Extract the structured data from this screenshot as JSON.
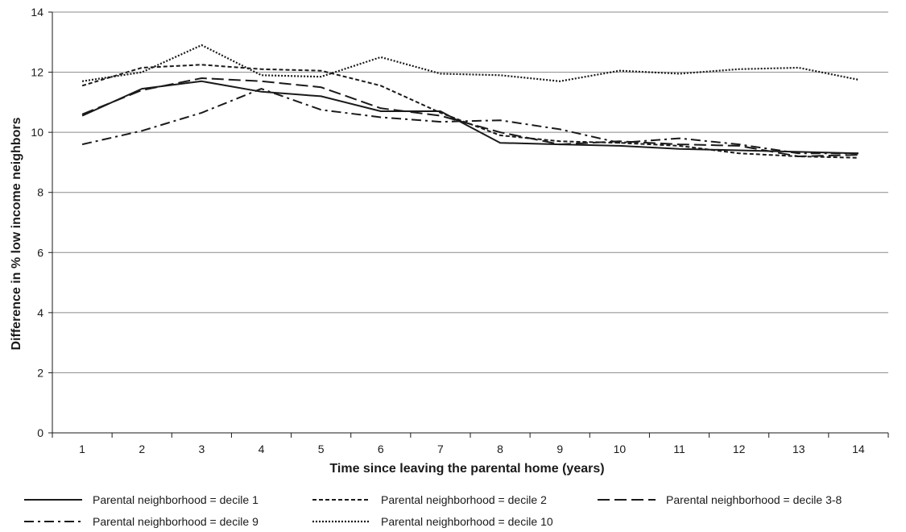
{
  "chart_data": {
    "type": "line",
    "title": "",
    "xlabel": "Time since leaving the parental home (years)",
    "ylabel": "Difference in % low income neighbors",
    "x": [
      1,
      2,
      3,
      4,
      5,
      6,
      7,
      8,
      9,
      10,
      11,
      12,
      13,
      14
    ],
    "xlim": [
      0.5,
      14.5
    ],
    "ylim": [
      0,
      14
    ],
    "yticks": [
      0,
      2,
      4,
      6,
      8,
      10,
      12,
      14
    ],
    "grid": "horizontal",
    "legend_position": "bottom",
    "series": [
      {
        "name": "Parental neighborhood = decile 1",
        "style": "solid",
        "values": [
          10.55,
          11.45,
          11.7,
          11.35,
          11.2,
          10.7,
          10.7,
          9.65,
          9.6,
          9.55,
          9.45,
          9.4,
          9.35,
          9.3
        ]
      },
      {
        "name": "Parental neighborhood = decile 2",
        "style": "short-dash",
        "values": [
          11.55,
          12.15,
          12.25,
          12.1,
          12.05,
          11.55,
          10.65,
          9.9,
          9.7,
          9.65,
          9.55,
          9.3,
          9.2,
          9.15
        ]
      },
      {
        "name": "Parental neighborhood = decile 3-8",
        "style": "long-dash",
        "values": [
          10.6,
          11.4,
          11.8,
          11.7,
          11.5,
          10.8,
          10.55,
          10.0,
          9.6,
          9.7,
          9.6,
          9.55,
          9.2,
          9.25
        ]
      },
      {
        "name": "Parental neighborhood = decile 9",
        "style": "dash-dot",
        "values": [
          9.6,
          10.05,
          10.65,
          11.45,
          10.75,
          10.5,
          10.35,
          10.4,
          10.1,
          9.65,
          9.8,
          9.6,
          9.3,
          9.3
        ]
      },
      {
        "name": "Parental neighborhood = decile 10",
        "style": "dotted",
        "values": [
          11.7,
          12.0,
          12.9,
          11.9,
          11.85,
          12.5,
          11.95,
          11.9,
          11.7,
          12.05,
          11.95,
          12.1,
          12.15,
          11.75
        ]
      }
    ]
  }
}
